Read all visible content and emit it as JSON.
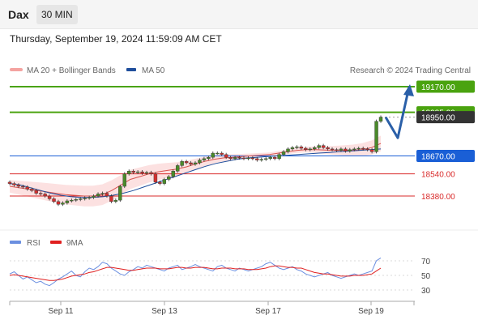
{
  "header": {
    "symbol": "Dax",
    "interval": "30 MIN",
    "timestamp": "Thursday, September 19, 2024 11:59:09 AM CET"
  },
  "legend": {
    "ma20_label": "MA 20 + Bollinger Bands",
    "ma50_label": "MA 50",
    "copyright": "Research © 2024 Trading Central",
    "rsi_label": "RSI",
    "rsi_ma_label": "9MA"
  },
  "colors": {
    "resistance": "#4aa30f",
    "support_key": "#1a5fd6",
    "support": "#d92b2b",
    "current": "#333333",
    "candle_up": "#4a8a2a",
    "candle_down": "#d32f2f",
    "ma20": "#d9534f",
    "ma50": "#1f4e9c",
    "bollinger": "#fbdcdc",
    "arrow": "#2a5fa8",
    "rsi": "#6b8fe0",
    "rsi_ma": "#e02020"
  },
  "chart_data": {
    "type": "candlestick",
    "x_tick_labels": [
      "Sep 11",
      "Sep 13",
      "Sep 17",
      "Sep 19"
    ],
    "price_levels": [
      {
        "value": 19170.0,
        "label": "19170.00",
        "kind": "resistance"
      },
      {
        "value": 18985.0,
        "label": "18985.00",
        "kind": "resistance"
      },
      {
        "value": 18950.0,
        "label": "18950.00",
        "kind": "current"
      },
      {
        "value": 18670.0,
        "label": "18670.00",
        "kind": "pivot"
      },
      {
        "value": 18540.0,
        "label": "18540.00",
        "kind": "support"
      },
      {
        "value": 18380.0,
        "label": "18380.00",
        "kind": "support"
      }
    ],
    "candle_closes": [
      18470,
      18460,
      18450,
      18445,
      18430,
      18420,
      18400,
      18395,
      18380,
      18360,
      18340,
      18320,
      18330,
      18345,
      18350,
      18355,
      18360,
      18365,
      18370,
      18380,
      18395,
      18400,
      18380,
      18340,
      18350,
      18450,
      18540,
      18560,
      18550,
      18555,
      18545,
      18550,
      18540,
      18480,
      18470,
      18500,
      18520,
      18560,
      18600,
      18630,
      18620,
      18610,
      18620,
      18640,
      18650,
      18660,
      18690,
      18690,
      18680,
      18660,
      18650,
      18660,
      18655,
      18650,
      18655,
      18650,
      18640,
      18645,
      18650,
      18660,
      18650,
      18680,
      18700,
      18720,
      18730,
      18735,
      18725,
      18715,
      18720,
      18730,
      18745,
      18730,
      18720,
      18715,
      18710,
      18720,
      18705,
      18715,
      18720,
      18725,
      18720,
      18715,
      18700,
      18920,
      18950
    ],
    "ma20": [
      18450,
      18440,
      18430,
      18420,
      18410,
      18400,
      18390,
      18385,
      18380,
      18380,
      18390,
      18420,
      18460,
      18500,
      18520,
      18540,
      18555,
      18565,
      18575,
      18590,
      18610,
      18630,
      18645,
      18655,
      18660,
      18665,
      18670,
      18675,
      18680,
      18690,
      18700,
      18710,
      18715,
      18715,
      18712,
      18710,
      18710,
      18710,
      18715,
      18730,
      18760
    ],
    "ma50": [
      18470,
      18460,
      18440,
      18420,
      18400,
      18385,
      18375,
      18370,
      18370,
      18375,
      18385,
      18400,
      18420,
      18445,
      18470,
      18495,
      18520,
      18545,
      18570,
      18595,
      18615,
      18630,
      18645,
      18655,
      18660,
      18665,
      18670,
      18675,
      18680,
      18685,
      18690,
      18695,
      18700,
      18705,
      18710,
      18715,
      18720
    ],
    "projected_path": [
      18950,
      18800,
      19170
    ],
    "rsi": {
      "y_ticks": [
        "70",
        "50",
        "30"
      ],
      "rsi_values": [
        52,
        55,
        50,
        45,
        48,
        44,
        40,
        42,
        38,
        36,
        40,
        45,
        48,
        52,
        56,
        50,
        48,
        55,
        60,
        58,
        62,
        68,
        66,
        60,
        56,
        52,
        50,
        55,
        58,
        62,
        60,
        64,
        62,
        60,
        58,
        56,
        60,
        62,
        64,
        58,
        60,
        62,
        65,
        62,
        60,
        58,
        56,
        62,
        64,
        60,
        58,
        56,
        60,
        58,
        56,
        58,
        60,
        62,
        66,
        68,
        64,
        60,
        58,
        60,
        62,
        58,
        56,
        52,
        50,
        48,
        50,
        52,
        54,
        50,
        48,
        46,
        48,
        50,
        52,
        50,
        52,
        54,
        56,
        70,
        74
      ],
      "ma_values": [
        50,
        51,
        50,
        49,
        48,
        47,
        46,
        45,
        44,
        43,
        43,
        44,
        45,
        47,
        49,
        50,
        51,
        52,
        54,
        55,
        57,
        59,
        61,
        61,
        60,
        59,
        58,
        57,
        57,
        58,
        59,
        60,
        60,
        60,
        59,
        59,
        59,
        60,
        61,
        61,
        60,
        60,
        61,
        61,
        61,
        60,
        59,
        59,
        60,
        60,
        60,
        59,
        59,
        59,
        58,
        58,
        58,
        59,
        60,
        62,
        63,
        63,
        62,
        61,
        61,
        60,
        60,
        58,
        56,
        54,
        53,
        52,
        52,
        51,
        50,
        49,
        49,
        49,
        50,
        50,
        50,
        51,
        52,
        56,
        60
      ]
    }
  }
}
